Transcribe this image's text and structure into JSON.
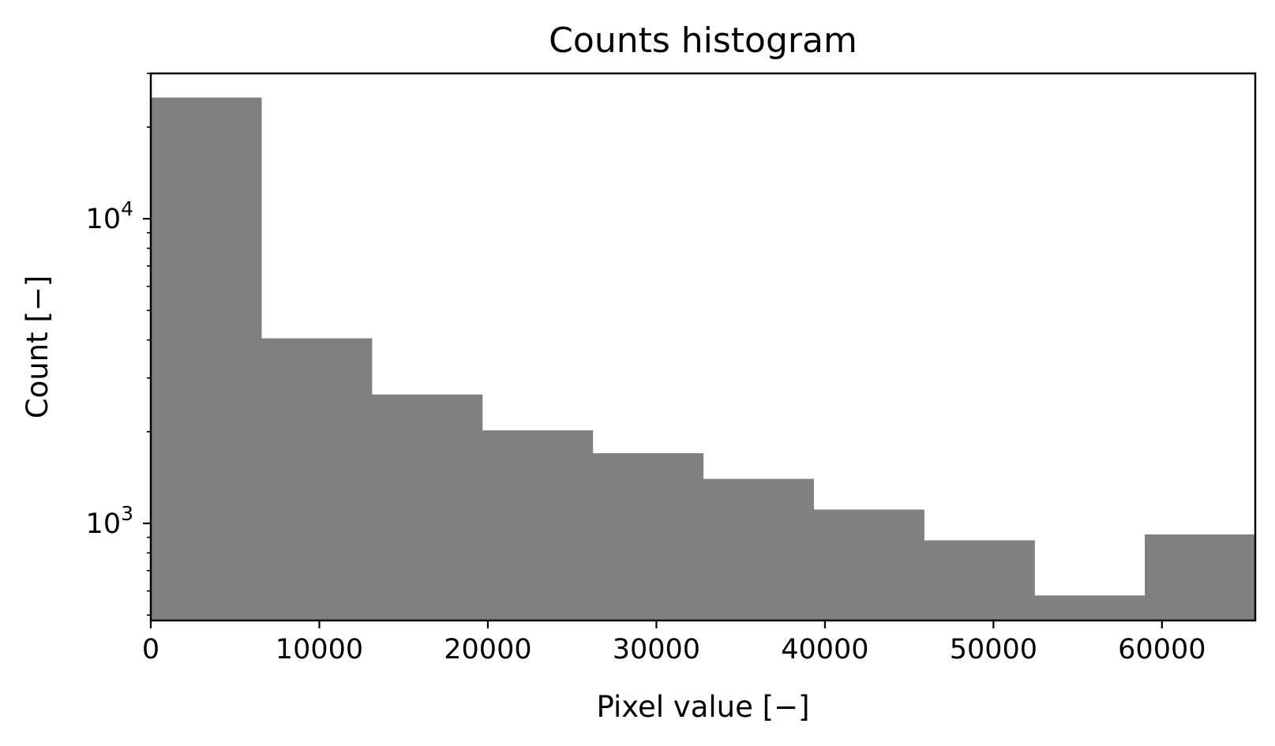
{
  "chart_data": {
    "type": "bar",
    "title": "Counts histogram",
    "xlabel": "Pixel value [−]",
    "ylabel": "Count [−]",
    "yscale": "log",
    "xlim": [
      0,
      65535
    ],
    "ylim": [
      480,
      30000
    ],
    "bin_edges": [
      0,
      6553.5,
      13107,
      19660.5,
      26214,
      32767.5,
      39321,
      45874.5,
      52428,
      58981.5,
      65535
    ],
    "values": [
      25000,
      4050,
      2650,
      2020,
      1700,
      1400,
      1110,
      880,
      580,
      920
    ],
    "bar_color": "#808080",
    "grid": false,
    "legend": "none",
    "x_ticks": [
      {
        "value": 0,
        "label": "0"
      },
      {
        "value": 10000,
        "label": "10000"
      },
      {
        "value": 20000,
        "label": "20000"
      },
      {
        "value": 30000,
        "label": "30000"
      },
      {
        "value": 40000,
        "label": "40000"
      },
      {
        "value": 50000,
        "label": "50000"
      },
      {
        "value": 60000,
        "label": "60000"
      }
    ],
    "y_ticks": [
      {
        "value": 1000,
        "base": "10",
        "exp": "3"
      },
      {
        "value": 10000,
        "base": "10",
        "exp": "4"
      }
    ],
    "y_minor_ticks": [
      500,
      600,
      700,
      800,
      900,
      2000,
      3000,
      4000,
      5000,
      6000,
      7000,
      8000,
      9000,
      20000,
      30000
    ]
  }
}
